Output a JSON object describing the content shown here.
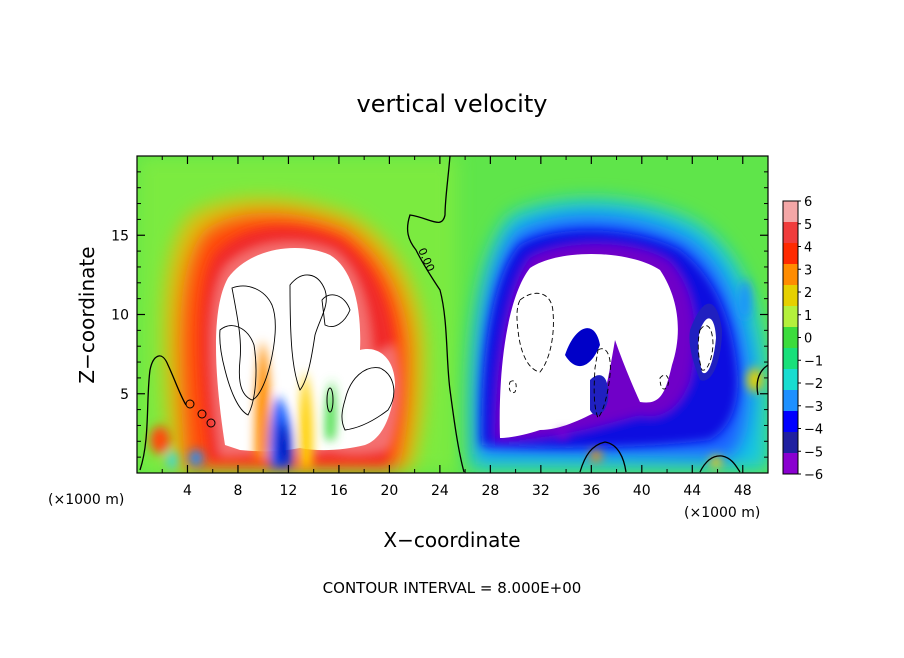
{
  "chart_data": {
    "type": "heatmap",
    "title": "vertical velocity",
    "xlabel": "X−coordinate",
    "ylabel": "Z−coordinate",
    "x_unit_left": "(×1000 m)",
    "x_unit_right": "(×1000 m)",
    "x_ticks": [
      "4",
      "8",
      "12",
      "16",
      "20",
      "24",
      "28",
      "32",
      "36",
      "40",
      "44",
      "48"
    ],
    "y_ticks": [
      "5",
      "10",
      "15"
    ],
    "xlim": [
      0,
      50
    ],
    "ylim": [
      0,
      20
    ],
    "colorbar_labels": [
      "6",
      "5",
      "4",
      "3",
      "2",
      "1",
      "0",
      "−1",
      "−2",
      "−3",
      "−4",
      "−5",
      "−6"
    ],
    "colorbar_colors": [
      "#f4a7a7",
      "#f03c3c",
      "#ff2a00",
      "#ff8c00",
      "#e6d000",
      "#b4f03c",
      "#3cdc3c",
      "#18e07a",
      "#18dcd0",
      "#1e90ff",
      "#0000ff",
      "#2020a0",
      "#8a00d0"
    ],
    "contour_interval": "CONTOUR INTERVAL = 8.000E+00",
    "contour_label": "0.00",
    "features": [
      {
        "sign": "positive",
        "x_range": [
          4,
          23
        ],
        "z_range": [
          0,
          16.5
        ],
        "peak": "> 6"
      },
      {
        "sign": "negative",
        "x_range": [
          26,
          50
        ],
        "z_range": [
          1,
          15.5
        ],
        "peak": "< -6"
      }
    ]
  }
}
